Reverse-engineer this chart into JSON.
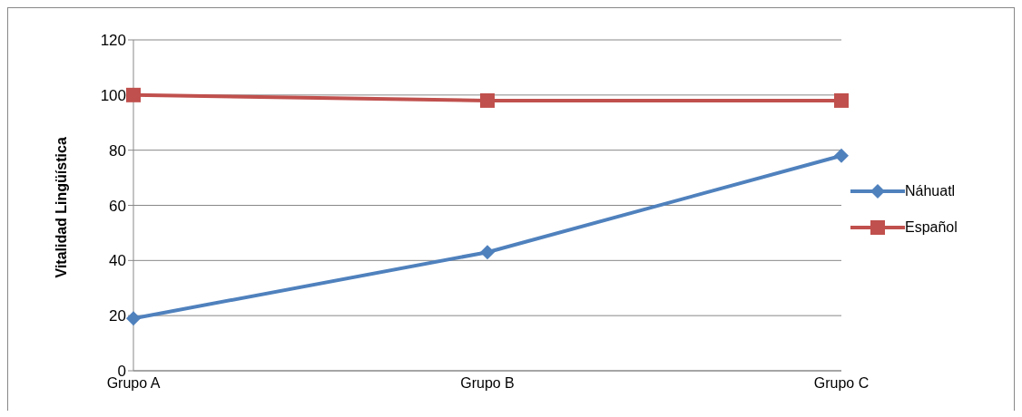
{
  "chart_data": {
    "type": "line",
    "ylabel": "Vitalidad Lingüística",
    "categories": [
      "Grupo A",
      "Grupo B",
      "Grupo C"
    ],
    "series": [
      {
        "name": "Náhuatl",
        "color": "#4f81bd",
        "values": [
          19,
          43,
          78
        ],
        "marker": "diamond"
      },
      {
        "name": "Español",
        "color": "#c0504d",
        "values": [
          100,
          98,
          98
        ],
        "marker": "square"
      }
    ],
    "ylim": [
      0,
      120
    ],
    "yticks": [
      0,
      20,
      40,
      60,
      80,
      100,
      120
    ],
    "grid": "y",
    "legend": "right",
    "line_style": "solid"
  }
}
